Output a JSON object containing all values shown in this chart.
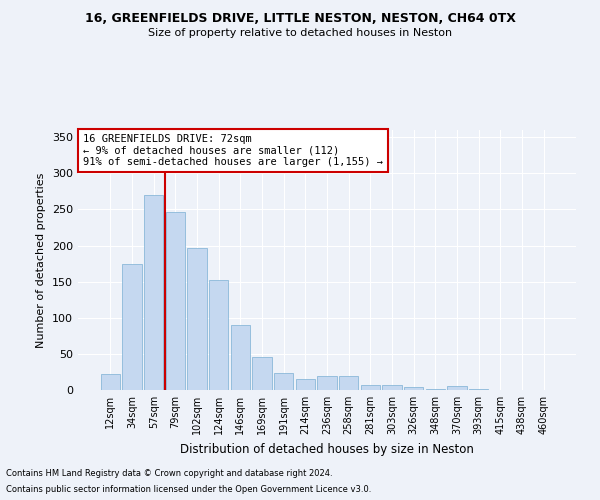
{
  "title1": "16, GREENFIELDS DRIVE, LITTLE NESTON, NESTON, CH64 0TX",
  "title2": "Size of property relative to detached houses in Neston",
  "xlabel": "Distribution of detached houses by size in Neston",
  "ylabel": "Number of detached properties",
  "footnote1": "Contains HM Land Registry data © Crown copyright and database right 2024.",
  "footnote2": "Contains public sector information licensed under the Open Government Licence v3.0.",
  "annotation_line1": "16 GREENFIELDS DRIVE: 72sqm",
  "annotation_line2": "← 9% of detached houses are smaller (112)",
  "annotation_line3": "91% of semi-detached houses are larger (1,155) →",
  "bar_color": "#c5d8f0",
  "bar_edge_color": "#7bafd4",
  "vline_color": "#cc0000",
  "background_color": "#eef2f9",
  "grid_color": "#ffffff",
  "annotation_box_color": "#ffffff",
  "annotation_box_edge": "#cc0000",
  "categories": [
    "12sqm",
    "34sqm",
    "57sqm",
    "79sqm",
    "102sqm",
    "124sqm",
    "146sqm",
    "169sqm",
    "191sqm",
    "214sqm",
    "236sqm",
    "258sqm",
    "281sqm",
    "303sqm",
    "326sqm",
    "348sqm",
    "370sqm",
    "393sqm",
    "415sqm",
    "438sqm",
    "460sqm"
  ],
  "values": [
    22,
    175,
    270,
    246,
    197,
    152,
    90,
    46,
    24,
    15,
    20,
    20,
    7,
    7,
    4,
    1,
    5,
    1,
    0,
    0,
    0
  ],
  "vline_x_idx": 3,
  "ylim": [
    0,
    360
  ],
  "yticks": [
    0,
    50,
    100,
    150,
    200,
    250,
    300,
    350
  ]
}
